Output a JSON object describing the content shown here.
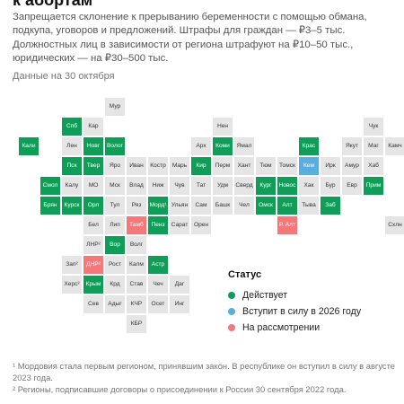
{
  "title": "к абортам",
  "subtitle": "Запрещается склонение к прерыванию беременности с помощью обмана, подкупа, уговоров и предложений. Штрафы для граждан — ₽3–5 тыс. Должностных лиц в зависимости от региона штрафуют на ₽10–50 тыс., юридических — на ₽30–500 тыс.",
  "date_note": "Данные на 30 октября",
  "colors": {
    "none": "#e5e5e5",
    "in_effect": "#0f9d58",
    "from_2026": "#5aaedf",
    "under_review": "#f4777a"
  },
  "legend": {
    "title": "Статус",
    "items": [
      {
        "status": "effect",
        "label": "Действует"
      },
      {
        "status": "future",
        "label": "Вступит в силу в 2026 году"
      },
      {
        "status": "consider",
        "label": "На рассмотрении"
      }
    ]
  },
  "chart_data": {
    "type": "table",
    "regions": [
      {
        "label": "Мур",
        "col": 4,
        "row": 0,
        "status": "none"
      },
      {
        "label": "Нен",
        "col": 9,
        "row": 1,
        "status": "none"
      },
      {
        "label": "Чук",
        "col": 16,
        "row": 1,
        "status": "none"
      },
      {
        "label": "Спб",
        "col": 2,
        "row": 1,
        "status": "effect"
      },
      {
        "label": "Кар",
        "col": 3,
        "row": 1,
        "status": "none"
      },
      {
        "label": "Кали",
        "col": 0,
        "row": 2,
        "status": "effect"
      },
      {
        "label": "Лен",
        "col": 2,
        "row": 2,
        "status": "none"
      },
      {
        "label": "Новг",
        "col": 3,
        "row": 2,
        "status": "effect"
      },
      {
        "label": "Волог",
        "col": 4,
        "row": 2,
        "status": "effect"
      },
      {
        "label": "Арх",
        "col": 8,
        "row": 2,
        "status": "none"
      },
      {
        "label": "Коми",
        "col": 9,
        "row": 2,
        "status": "effect"
      },
      {
        "label": "Ямал",
        "col": 10,
        "row": 2,
        "status": "none"
      },
      {
        "label": "Крас",
        "col": 13,
        "row": 2,
        "status": "effect"
      },
      {
        "label": "Якут",
        "col": 15,
        "row": 2,
        "status": "none"
      },
      {
        "label": "Маг",
        "col": 16,
        "row": 2,
        "status": "none"
      },
      {
        "label": "Пск",
        "col": 2,
        "row": 3,
        "status": "effect"
      },
      {
        "label": "Твер",
        "col": 3,
        "row": 3,
        "status": "effect"
      },
      {
        "label": "Яро",
        "col": 4,
        "row": 3,
        "status": "none"
      },
      {
        "label": "Иван",
        "col": 5,
        "row": 3,
        "status": "none"
      },
      {
        "label": "Костр",
        "col": 6,
        "row": 3,
        "status": "none"
      },
      {
        "label": "Марь",
        "col": 7,
        "row": 3,
        "status": "none"
      },
      {
        "label": "Кир",
        "col": 8,
        "row": 3,
        "status": "effect"
      },
      {
        "label": "Перм",
        "col": 9,
        "row": 3,
        "status": "none"
      },
      {
        "label": "Хант",
        "col": 10,
        "row": 3,
        "status": "none"
      },
      {
        "label": "Тюм",
        "col": 11,
        "row": 3,
        "status": "none"
      },
      {
        "label": "Томск",
        "col": 12,
        "row": 3,
        "status": "none"
      },
      {
        "label": "Кем",
        "col": 13,
        "row": 3,
        "status": "future"
      },
      {
        "label": "Ирк",
        "col": 14,
        "row": 3,
        "status": "none"
      },
      {
        "label": "Амур",
        "col": 15,
        "row": 3,
        "status": "none"
      },
      {
        "label": "Хаб",
        "col": 16,
        "row": 3,
        "status": "none"
      },
      {
        "label": "Камч",
        "col": 17,
        "row": 2,
        "status": "none"
      },
      {
        "label": "Смол",
        "col": 1,
        "row": 4,
        "status": "effect"
      },
      {
        "label": "Калу",
        "col": 2,
        "row": 4,
        "status": "none"
      },
      {
        "label": "МО",
        "col": 3,
        "row": 4,
        "status": "none"
      },
      {
        "label": "Мск",
        "col": 4,
        "row": 4,
        "status": "none"
      },
      {
        "label": "Влад",
        "col": 5,
        "row": 4,
        "status": "none"
      },
      {
        "label": "Ниж",
        "col": 6,
        "row": 4,
        "status": "none"
      },
      {
        "label": "Чув",
        "col": 7,
        "row": 4,
        "status": "none"
      },
      {
        "label": "Тат",
        "col": 8,
        "row": 4,
        "status": "none"
      },
      {
        "label": "Удм",
        "col": 9,
        "row": 4,
        "status": "none"
      },
      {
        "label": "Сверд",
        "col": 10,
        "row": 4,
        "status": "none"
      },
      {
        "label": "Кург",
        "col": 11,
        "row": 4,
        "status": "effect"
      },
      {
        "label": "Новос",
        "col": 12,
        "row": 4,
        "status": "effect"
      },
      {
        "label": "Хак",
        "col": 13,
        "row": 4,
        "status": "none"
      },
      {
        "label": "Бур",
        "col": 14,
        "row": 4,
        "status": "none"
      },
      {
        "label": "Евр",
        "col": 15,
        "row": 4,
        "status": "none"
      },
      {
        "label": "Прим",
        "col": 16,
        "row": 4,
        "status": "effect"
      },
      {
        "label": "Брян",
        "col": 1,
        "row": 5,
        "status": "effect"
      },
      {
        "label": "Курск",
        "col": 2,
        "row": 5,
        "status": "effect"
      },
      {
        "label": "Орл",
        "col": 3,
        "row": 5,
        "status": "effect"
      },
      {
        "label": "Тул",
        "col": 4,
        "row": 5,
        "status": "none"
      },
      {
        "label": "Ряз",
        "col": 5,
        "row": 5,
        "status": "none"
      },
      {
        "label": "Морд¹",
        "col": 6,
        "row": 5,
        "status": "effect"
      },
      {
        "label": "Ульян",
        "col": 7,
        "row": 5,
        "status": "none"
      },
      {
        "label": "Сам",
        "col": 8,
        "row": 5,
        "status": "none"
      },
      {
        "label": "Башк",
        "col": 9,
        "row": 5,
        "status": "none"
      },
      {
        "label": "Чел",
        "col": 10,
        "row": 5,
        "status": "none"
      },
      {
        "label": "Омск",
        "col": 11,
        "row": 5,
        "status": "effect"
      },
      {
        "label": "Алт",
        "col": 12,
        "row": 5,
        "status": "effect"
      },
      {
        "label": "Тыва",
        "col": 13,
        "row": 5,
        "status": "none"
      },
      {
        "label": "Заб",
        "col": 14,
        "row": 5,
        "status": "effect"
      },
      {
        "label": "Бел",
        "col": 3,
        "row": 6,
        "status": "none"
      },
      {
        "label": "Лип",
        "col": 4,
        "row": 6,
        "status": "none"
      },
      {
        "label": "Тамб",
        "col": 5,
        "row": 6,
        "status": "consider"
      },
      {
        "label": "Пенз",
        "col": 6,
        "row": 6,
        "status": "effect"
      },
      {
        "label": "Сарат",
        "col": 7,
        "row": 6,
        "status": "none"
      },
      {
        "label": "Орен",
        "col": 8,
        "row": 6,
        "status": "none"
      },
      {
        "label": "Р. Алт",
        "col": 12,
        "row": 6,
        "status": "consider"
      },
      {
        "label": "Схлн",
        "col": 17,
        "row": 6,
        "status": "none"
      },
      {
        "label": "ЛНР²",
        "col": 3,
        "row": 7,
        "status": "none"
      },
      {
        "label": "Вор",
        "col": 4,
        "row": 7,
        "status": "effect"
      },
      {
        "label": "Волг",
        "col": 5,
        "row": 7,
        "status": "none"
      },
      {
        "label": "Зап²",
        "col": 2,
        "row": 8,
        "status": "none"
      },
      {
        "label": "ДНР²",
        "col": 3,
        "row": 8,
        "status": "consider"
      },
      {
        "label": "Рост",
        "col": 4,
        "row": 8,
        "status": "none"
      },
      {
        "label": "Калм",
        "col": 5,
        "row": 8,
        "status": "none"
      },
      {
        "label": "Астр",
        "col": 6,
        "row": 8,
        "status": "effect"
      },
      {
        "label": "Херс²",
        "col": 2,
        "row": 9,
        "status": "none"
      },
      {
        "label": "Крым",
        "col": 3,
        "row": 9,
        "status": "effect"
      },
      {
        "label": "Крд",
        "col": 4,
        "row": 9,
        "status": "none"
      },
      {
        "label": "Став",
        "col": 5,
        "row": 9,
        "status": "none"
      },
      {
        "label": "Чеч",
        "col": 6,
        "row": 9,
        "status": "none"
      },
      {
        "label": "Даг",
        "col": 7,
        "row": 9,
        "status": "none"
      },
      {
        "label": "Сев",
        "col": 3,
        "row": 10,
        "status": "none"
      },
      {
        "label": "Адыг",
        "col": 4,
        "row": 10,
        "status": "none"
      },
      {
        "label": "КЧР",
        "col": 5,
        "row": 10,
        "status": "none"
      },
      {
        "label": "Осет",
        "col": 6,
        "row": 10,
        "status": "none"
      },
      {
        "label": "Инг",
        "col": 7,
        "row": 10,
        "status": "none"
      },
      {
        "label": "КБР",
        "col": 5,
        "row": 11,
        "status": "none"
      }
    ]
  },
  "footnotes": [
    "¹ Мордовия стала первым регионом, принявшим закон. В республике он вступил в силу в августе 2023 года.",
    "² Регионы, подписавшие договоры о присоединении к России 30 сентября 2022 года."
  ]
}
